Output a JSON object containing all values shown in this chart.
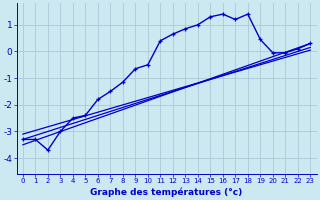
{
  "background_color": "#cce8f0",
  "grid_color": "#aac8d8",
  "line_color": "#0000cc",
  "xlabel": "Graphe des températures (°c)",
  "xlim": [
    -0.5,
    23.5
  ],
  "ylim": [
    -4.6,
    1.8
  ],
  "yticks": [
    -4,
    -3,
    -2,
    -1,
    0,
    1
  ],
  "xticks": [
    0,
    1,
    2,
    3,
    4,
    5,
    6,
    7,
    8,
    9,
    10,
    11,
    12,
    13,
    14,
    15,
    16,
    17,
    18,
    19,
    20,
    21,
    22,
    23
  ],
  "line1_x": [
    0,
    1,
    2,
    3,
    4,
    5,
    6,
    7,
    8,
    9,
    10,
    11,
    12,
    13,
    14,
    15,
    16,
    17,
    18,
    19,
    20,
    21,
    22,
    23
  ],
  "line1_y": [
    -3.3,
    -3.3,
    -3.7,
    -3.0,
    -2.5,
    -2.4,
    -1.8,
    -1.5,
    -1.15,
    -0.65,
    -0.5,
    0.4,
    0.65,
    0.85,
    1.0,
    1.3,
    1.4,
    1.2,
    1.4,
    0.45,
    -0.05,
    -0.05,
    0.1,
    0.3
  ],
  "line2_x": [
    0,
    23
  ],
  "line2_y": [
    -3.5,
    0.3
  ],
  "line3_x": [
    0,
    23
  ],
  "line3_y": [
    -3.3,
    0.15
  ],
  "line4_x": [
    0,
    23
  ],
  "line4_y": [
    -3.1,
    0.05
  ]
}
